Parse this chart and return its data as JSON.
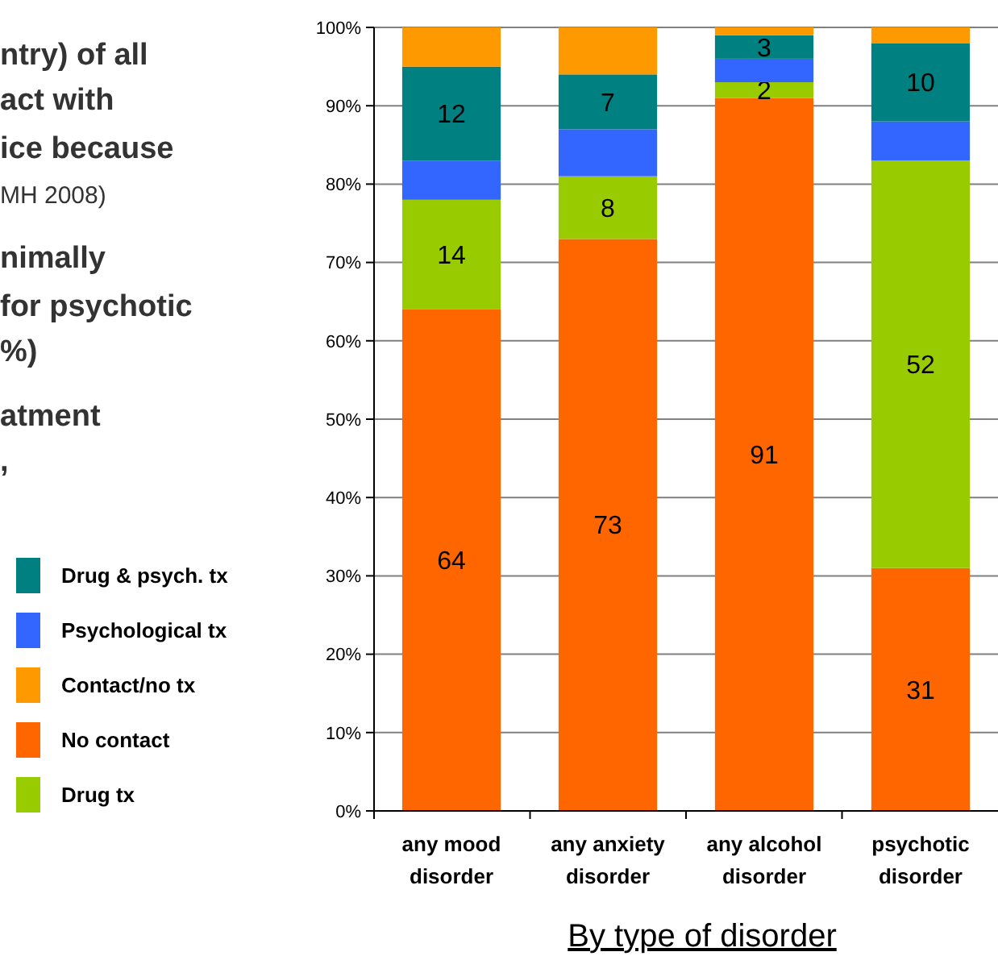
{
  "chart_data": {
    "type": "bar",
    "stacked": true,
    "xlabel": "By type of disorder",
    "categories": [
      "any mood disorder",
      "any anxiety disorder",
      "any alcohol disorder",
      "psychotic disorder"
    ],
    "series": [
      {
        "name": "No contact",
        "color": "#ff6600",
        "values": [
          64,
          73,
          91,
          31
        ],
        "value_labels": [
          "64",
          "73",
          "91",
          "31"
        ]
      },
      {
        "name": "Drug tx",
        "color": "#99cc00",
        "values": [
          14,
          8,
          2,
          52
        ],
        "value_labels": [
          "14",
          "8",
          "2",
          "52"
        ]
      },
      {
        "name": "Psychological tx",
        "color": "#3366ff",
        "values": [
          5,
          6,
          3,
          5
        ]
      },
      {
        "name": "Drug & psych. tx",
        "color": "#008080",
        "values": [
          12,
          7,
          3,
          10
        ],
        "value_labels": [
          "12",
          "7",
          "3",
          "10"
        ]
      },
      {
        "name": "Contact/no tx",
        "color": "#ff9900",
        "values": [
          5,
          6,
          1,
          2
        ]
      }
    ],
    "ylim": [
      0,
      100
    ],
    "yticks": [
      {
        "value": 0,
        "label": "0%"
      },
      {
        "value": 10,
        "label": "10%"
      },
      {
        "value": 20,
        "label": "20%"
      },
      {
        "value": 30,
        "label": "30%"
      },
      {
        "value": 40,
        "label": "40%"
      },
      {
        "value": 50,
        "label": "50%"
      },
      {
        "value": 60,
        "label": "60%"
      },
      {
        "value": 70,
        "label": "70%"
      },
      {
        "value": 80,
        "label": "80%"
      },
      {
        "value": 90,
        "label": "90%"
      },
      {
        "value": 100,
        "label": "100%"
      }
    ],
    "grid": "y",
    "legend": "left",
    "annotations": [
      "ntry) of all",
      "act with",
      "ice because",
      "MH 2008)",
      "nimally",
      "for psychotic",
      "%)",
      "atment",
      ","
    ]
  }
}
